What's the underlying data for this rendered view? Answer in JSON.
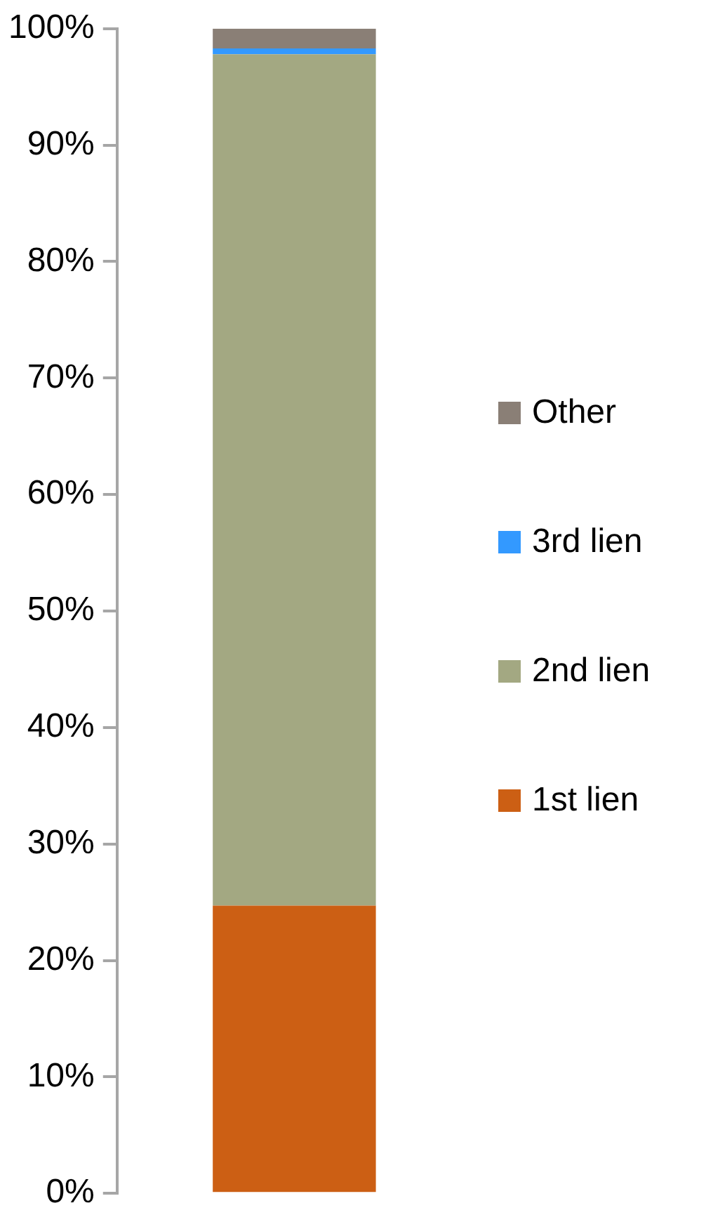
{
  "chart_data": {
    "type": "bar",
    "stacked": true,
    "categories": [
      null
    ],
    "series": [
      {
        "name": "1st lien",
        "color": "#cc5f14",
        "values": [
          24.7
        ]
      },
      {
        "name": "2nd lien",
        "color": "#a3a882",
        "values": [
          73.1
        ]
      },
      {
        "name": "3rd lien",
        "color": "#3399ff",
        "values": [
          0.5
        ]
      },
      {
        "name": "Other",
        "color": "#8a7f76",
        "values": [
          1.7
        ]
      }
    ],
    "ylim": [
      0,
      100
    ],
    "yticks": [
      {
        "value": 0,
        "label": "0%"
      },
      {
        "value": 10,
        "label": "10%"
      },
      {
        "value": 20,
        "label": "20%"
      },
      {
        "value": 30,
        "label": "30%"
      },
      {
        "value": 40,
        "label": "40%"
      },
      {
        "value": 50,
        "label": "50%"
      },
      {
        "value": 60,
        "label": "60%"
      },
      {
        "value": 70,
        "label": "70%"
      },
      {
        "value": 80,
        "label": "80%"
      },
      {
        "value": 90,
        "label": "90%"
      },
      {
        "value": 100,
        "label": "100%"
      }
    ],
    "grid": false,
    "legend": "right",
    "tick_labels": "y"
  }
}
